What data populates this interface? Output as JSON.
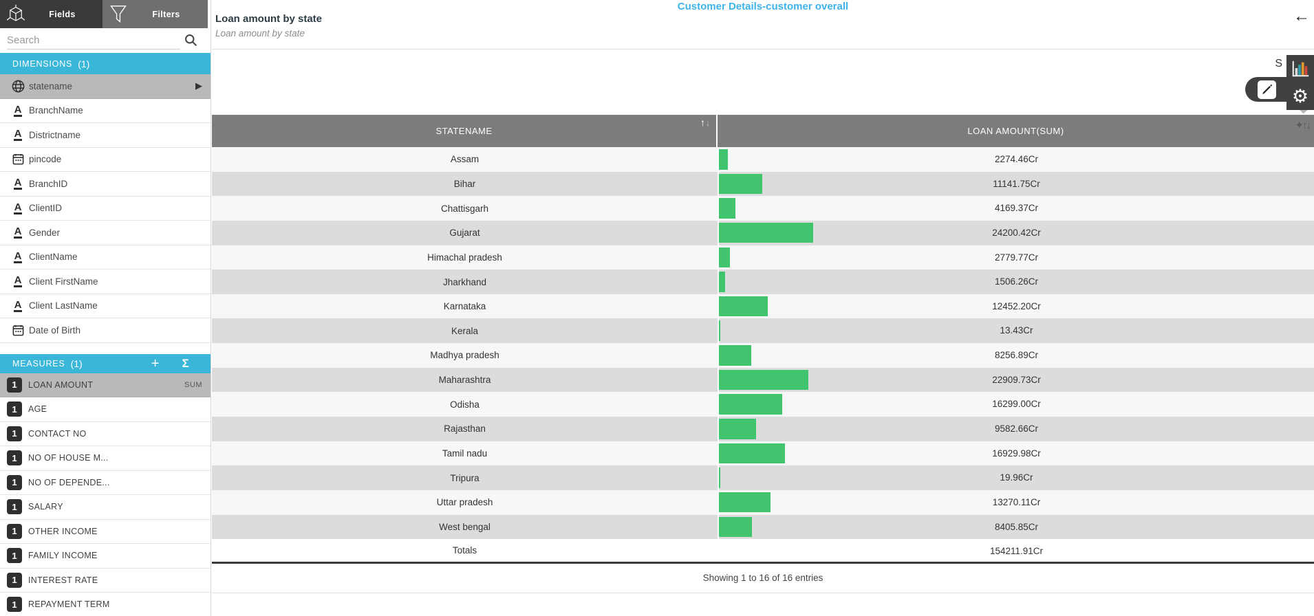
{
  "app": {
    "report_link": "Customer Details-customer overall",
    "back_arrow": "←",
    "panel_partial_text": "S"
  },
  "widget": {
    "title": "Loan amount by state",
    "subtitle": "Loan amount by state",
    "footer": "Showing 1 to 16 of 16 entries"
  },
  "sidebar": {
    "tabs": [
      {
        "label": "Fields",
        "icon": "cube-icon",
        "active": true
      },
      {
        "label": "Filters",
        "icon": "funnel-icon",
        "active": false
      }
    ],
    "search": {
      "placeholder": "Search"
    },
    "dimensions": {
      "title": "DIMENSIONS",
      "count": "(1)",
      "items": [
        {
          "label": "statename",
          "type": "geo",
          "selected": true
        },
        {
          "label": "BranchName",
          "type": "text"
        },
        {
          "label": "Districtname",
          "type": "text"
        },
        {
          "label": "pincode",
          "type": "date"
        },
        {
          "label": "BranchID",
          "type": "text"
        },
        {
          "label": "ClientID",
          "type": "text"
        },
        {
          "label": "Gender",
          "type": "text"
        },
        {
          "label": "ClientName",
          "type": "text"
        },
        {
          "label": "Client FirstName",
          "type": "text"
        },
        {
          "label": "Client LastName",
          "type": "text"
        },
        {
          "label": "Date of Birth",
          "type": "date"
        }
      ]
    },
    "measures": {
      "title": "MEASURES",
      "count": "(1)",
      "add_icon": "+",
      "sigma_icon": "Σ",
      "items": [
        {
          "label": "LOAN AMOUNT",
          "badge": "1",
          "agg": "SUM",
          "selected": true
        },
        {
          "label": "AGE",
          "badge": "1"
        },
        {
          "label": "CONTACT NO",
          "badge": "1"
        },
        {
          "label": "NO OF HOUSE M...",
          "badge": "1"
        },
        {
          "label": "NO OF DEPENDE...",
          "badge": "1"
        },
        {
          "label": "SALARY",
          "badge": "1"
        },
        {
          "label": "OTHER INCOME",
          "badge": "1"
        },
        {
          "label": "FAMILY INCOME",
          "badge": "1"
        },
        {
          "label": "INTEREST RATE",
          "badge": "1"
        },
        {
          "label": "REPAYMENT TERM",
          "badge": "1"
        }
      ]
    }
  },
  "table": {
    "columns": [
      {
        "label": "STATENAME"
      },
      {
        "label": "LOAN AMOUNT(SUM)"
      }
    ],
    "rows": [
      {
        "state": "Assam",
        "value": 2274.46,
        "display": "2274.46Cr"
      },
      {
        "state": "Bihar",
        "value": 11141.75,
        "display": "11141.75Cr"
      },
      {
        "state": "Chattisgarh",
        "value": 4169.37,
        "display": "4169.37Cr"
      },
      {
        "state": "Gujarat",
        "value": 24200.42,
        "display": "24200.42Cr"
      },
      {
        "state": "Himachal pradesh",
        "value": 2779.77,
        "display": "2779.77Cr"
      },
      {
        "state": "Jharkhand",
        "value": 1506.26,
        "display": "1506.26Cr"
      },
      {
        "state": "Karnataka",
        "value": 12452.2,
        "display": "12452.20Cr"
      },
      {
        "state": "Kerala",
        "value": 13.43,
        "display": "13.43Cr"
      },
      {
        "state": "Madhya pradesh",
        "value": 8256.89,
        "display": "8256.89Cr"
      },
      {
        "state": "Maharashtra",
        "value": 22909.73,
        "display": "22909.73Cr"
      },
      {
        "state": "Odisha",
        "value": 16299.0,
        "display": "16299.00Cr"
      },
      {
        "state": "Rajasthan",
        "value": 9582.66,
        "display": "9582.66Cr"
      },
      {
        "state": "Tamil nadu",
        "value": 16929.98,
        "display": "16929.98Cr"
      },
      {
        "state": "Tripura",
        "value": 19.96,
        "display": "19.96Cr"
      },
      {
        "state": "Uttar pradesh",
        "value": 13270.11,
        "display": "13270.11Cr"
      },
      {
        "state": "West bengal",
        "value": 8405.85,
        "display": "8405.85Cr"
      }
    ],
    "totals": {
      "label": "Totals",
      "value": 154211.91,
      "display": "154211.91Cr"
    }
  },
  "chart_data": {
    "type": "bar",
    "title": "Loan amount by state",
    "categories": [
      "Assam",
      "Bihar",
      "Chattisgarh",
      "Gujarat",
      "Himachal pradesh",
      "Jharkhand",
      "Karnataka",
      "Kerala",
      "Madhya pradesh",
      "Maharashtra",
      "Odisha",
      "Rajasthan",
      "Tamil nadu",
      "Tripura",
      "Uttar pradesh",
      "West bengal"
    ],
    "values": [
      2274.46,
      11141.75,
      4169.37,
      24200.42,
      2779.77,
      1506.26,
      12452.2,
      13.43,
      8256.89,
      22909.73,
      16299.0,
      9582.66,
      16929.98,
      19.96,
      13270.11,
      8405.85
    ],
    "total": 154211.91,
    "unit": "Cr",
    "xlabel": "STATENAME",
    "ylabel": "LOAN AMOUNT(SUM)"
  },
  "colors": {
    "accent_cyan": "#3ab6d9",
    "bar_green": "#40c46e",
    "link_blue": "#3fb3e8",
    "header_gray": "#7c7c7c",
    "row_alt_gray": "#dcdcdc"
  }
}
